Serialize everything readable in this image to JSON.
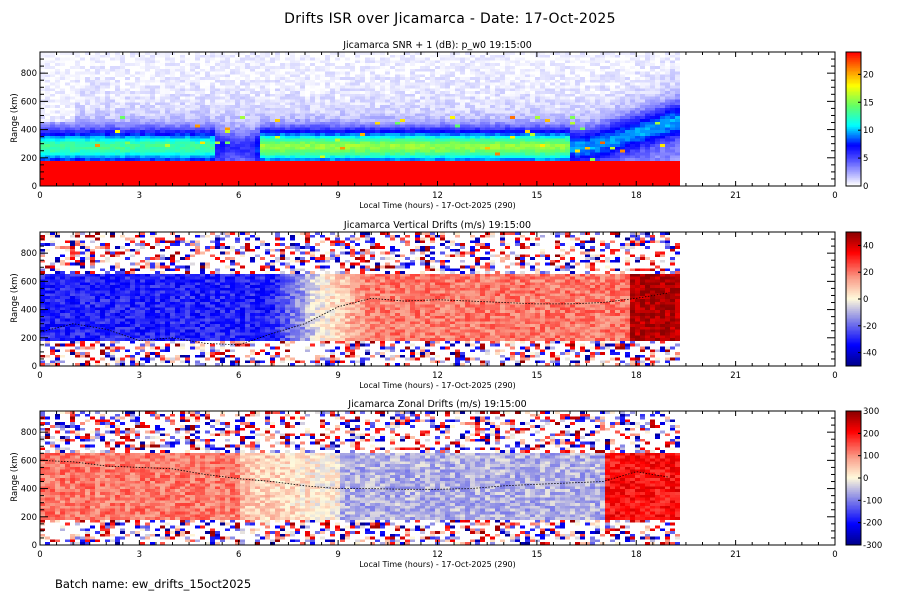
{
  "figure": {
    "title": "Drifts ISR over Jicamarca - Date: 17-Oct-2025",
    "batch_label": "Batch name: ew_drifts_15oct2025"
  },
  "chart_data": [
    {
      "type": "heatmap",
      "id": "snr",
      "title": "Jicamarca SNR + 1 (dB): p_w0 19:15:00",
      "xlabel": "Local Time (hours) - 17-Oct-2025 (290)",
      "ylabel": "Range (km)",
      "xlim": [
        0,
        24
      ],
      "ylim": [
        0,
        950
      ],
      "xticks": [
        "0",
        "3",
        "6",
        "9",
        "12",
        "15",
        "18",
        "21",
        "0"
      ],
      "yticks": [
        "0",
        "200",
        "400",
        "600",
        "800"
      ],
      "colorbar": {
        "min": 0,
        "max": 24,
        "ticks": [
          "0",
          "5",
          "10",
          "15",
          "20"
        ],
        "colormap": "jet-white"
      },
      "data_end_hour": 19.25,
      "features": {
        "saturated_below_km": 170,
        "layer_peak_km": 280,
        "layer_peak_snr_db": 12,
        "evening_rise_start_hour": 16.5,
        "evening_rise_top_km": 480
      }
    },
    {
      "type": "heatmap",
      "id": "vertical",
      "title": "Jicamarca Vertical Drifts (m/s) 19:15:00",
      "xlabel": "Local Time (hours) - 17-Oct-2025 (290)",
      "ylabel": "Range (km)",
      "xlim": [
        0,
        24
      ],
      "ylim": [
        0,
        950
      ],
      "xticks": [
        "0",
        "3",
        "6",
        "9",
        "12",
        "15",
        "18",
        "21",
        "0"
      ],
      "yticks": [
        "0",
        "200",
        "400",
        "600",
        "800"
      ],
      "colorbar": {
        "min": -50,
        "max": 50,
        "ticks": [
          "-40",
          "-20",
          "0",
          "20",
          "40"
        ],
        "colormap": "blue-white-red"
      },
      "data_end_hour": 19.25,
      "features": {
        "night_drift_ms": -30,
        "day_drift_ms": 20,
        "prereversal_peak_ms": 45,
        "reversal_hour": 8.5
      },
      "peak_height_trace": {
        "hours": [
          0,
          1,
          2,
          3,
          4,
          5,
          6,
          7,
          8,
          9,
          10,
          11,
          12,
          13,
          14,
          15,
          16,
          17,
          18,
          19
        ],
        "range_km": [
          240,
          300,
          260,
          180,
          200,
          160,
          150,
          230,
          300,
          420,
          480,
          460,
          470,
          460,
          450,
          440,
          440,
          450,
          480,
          520
        ]
      }
    },
    {
      "type": "heatmap",
      "id": "zonal",
      "title": "Jicamarca Zonal Drifts (m/s) 19:15:00",
      "xlabel": "Local Time (hours) - 17-Oct-2025 (290)",
      "ylabel": "Range (km)",
      "xlim": [
        0,
        24
      ],
      "ylim": [
        0,
        950
      ],
      "xticks": [
        "0",
        "3",
        "6",
        "9",
        "12",
        "15",
        "18",
        "21",
        "0"
      ],
      "yticks": [
        "0",
        "200",
        "400",
        "600",
        "800"
      ],
      "colorbar": {
        "min": -300,
        "max": 300,
        "ticks": [
          "-300",
          "-200",
          "-100",
          "0",
          "100",
          "200",
          "300"
        ],
        "colormap": "blue-white-red"
      },
      "data_end_hour": 19.25,
      "features": {
        "night_drift_ms": 120,
        "day_drift_ms": -60,
        "evening_drift_ms": 200
      },
      "peak_height_trace": {
        "hours": [
          0,
          1,
          2,
          3,
          4,
          5,
          6,
          7,
          8,
          9,
          10,
          11,
          12,
          13,
          14,
          15,
          16,
          17,
          18,
          19
        ],
        "range_km": [
          600,
          590,
          560,
          550,
          540,
          500,
          470,
          450,
          420,
          400,
          400,
          395,
          395,
          400,
          420,
          430,
          440,
          450,
          520,
          480
        ]
      }
    }
  ]
}
